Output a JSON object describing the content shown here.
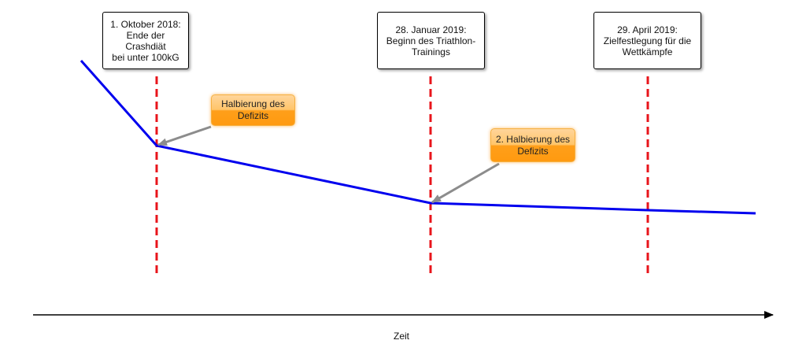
{
  "milestones": [
    {
      "text": "1. Oktober 2018:\nEnde der Crashdiät\nbei unter 100kG"
    },
    {
      "text": "28. Januar 2019:\nBeginn des Triathlon-\nTrainings"
    },
    {
      "text": "29. April 2019:\nZielfestlegung für die\nWettkämpfe"
    }
  ],
  "callouts": [
    {
      "text": "Halbierung des\nDefizits"
    },
    {
      "text": "2. Halbierung des\nDefizits"
    }
  ],
  "axis": {
    "label": "Zeit"
  },
  "colors": {
    "curve": "#0000ee",
    "milestone_line": "#e8141b",
    "axis": "#000000",
    "callout_arrow": "#8c8c8c",
    "callout_fill": "#ffb040"
  }
}
